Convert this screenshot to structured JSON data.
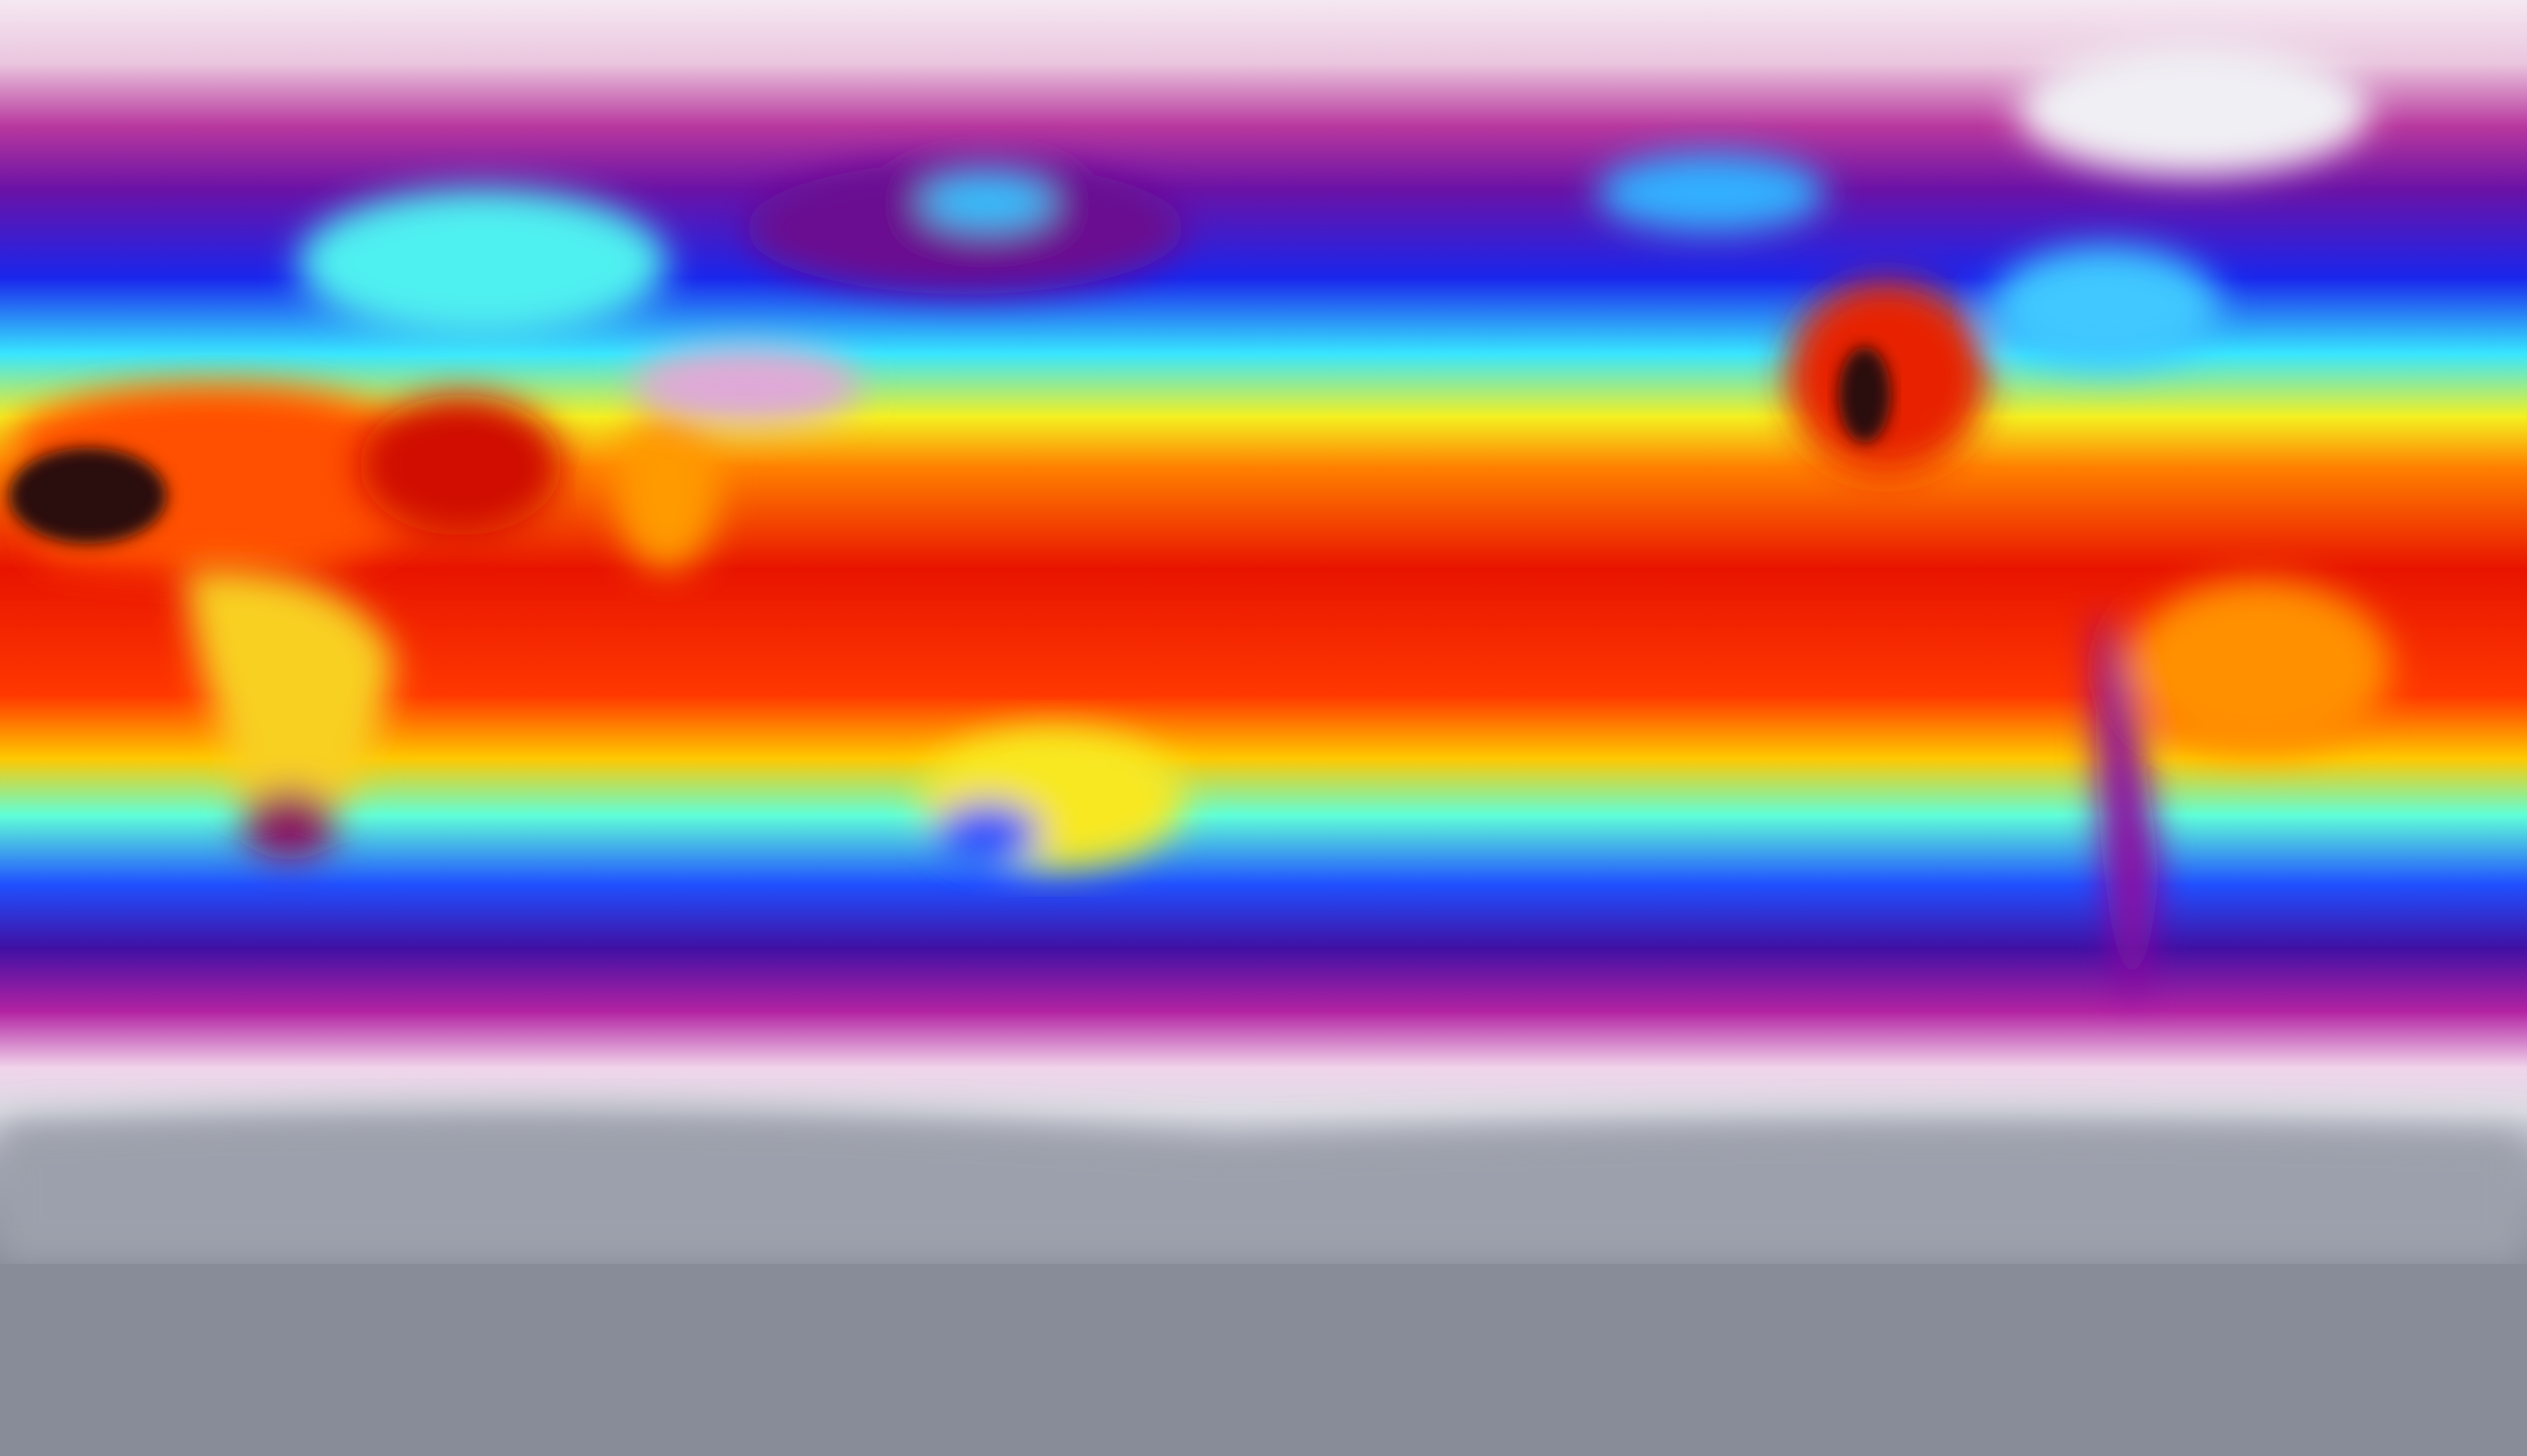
{
  "map": {
    "palette": {
      "polar_white": "#f3e4ef",
      "magenta": "#b0309a",
      "purple": "#5a10a8",
      "blue": "#1a28f0",
      "cyan": "#38e8ff",
      "yellow": "#f8f020",
      "orange": "#ff7000",
      "red": "#e81000",
      "dark_hot": "#2a0c10",
      "antarctic_gray": "#8c909c"
    }
  }
}
